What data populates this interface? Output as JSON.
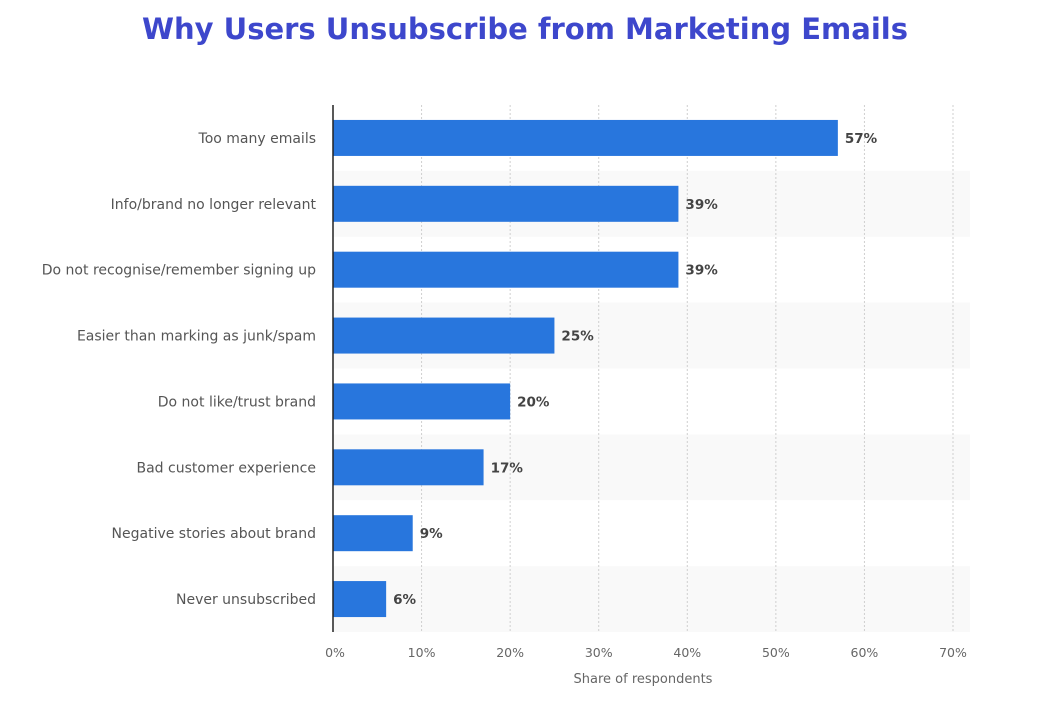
{
  "chart_data": {
    "type": "bar",
    "orientation": "horizontal",
    "title": "Why Users Unsubscribe from Marketing Emails",
    "xlabel": "Share of respondents",
    "ylabel": "",
    "categories": [
      "Too many emails",
      "Info/brand no longer relevant",
      "Do not recognise/remember signing up",
      "Easier than marking as junk/spam",
      "Do not like/trust brand",
      "Bad customer experience",
      "Negative stories about brand",
      "Never unsubscribed"
    ],
    "values": [
      57,
      39,
      39,
      25,
      20,
      17,
      9,
      6
    ],
    "data_labels": [
      "57%",
      "39%",
      "39%",
      "25%",
      "20%",
      "17%",
      "9%",
      "6%"
    ],
    "xlim": [
      0,
      70
    ],
    "xticks": [
      0,
      10,
      20,
      30,
      40,
      50,
      60,
      70
    ],
    "xtick_labels": [
      "0%",
      "10%",
      "20%",
      "30%",
      "40%",
      "50%",
      "60%",
      "70%"
    ],
    "grid": "vertical dotted",
    "colors": {
      "bar": "#2876dd",
      "title": "#3d47cc",
      "band": "#f9f9f9"
    }
  }
}
